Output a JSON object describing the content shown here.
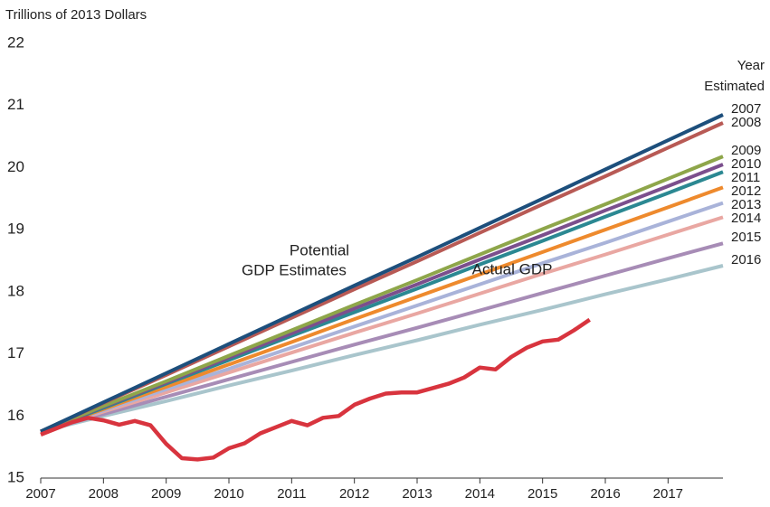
{
  "chart_data": {
    "type": "line",
    "y_axis_label": "Trillions of 2013 Dollars",
    "legend_title": [
      "Year",
      "Estimated"
    ],
    "annotations": [
      {
        "text": [
          "Potential",
          "GDP Estimates"
        ]
      }
    ],
    "xlim": [
      2007,
      2017.875
    ],
    "ylim": [
      15,
      22
    ],
    "xticks": [
      2007,
      2008,
      2009,
      2010,
      2011,
      2012,
      2013,
      2014,
      2015,
      2016,
      2017
    ],
    "yticks": [
      15,
      16,
      17,
      18,
      19,
      20,
      21,
      22
    ],
    "grid": false,
    "x": [
      2007,
      2008,
      2009,
      2010,
      2011,
      2012,
      2013,
      2014,
      2015,
      2016,
      2017,
      2017.875
    ],
    "series": [
      {
        "name": "2007",
        "color": "#1d4f7c",
        "values": [
          15.75,
          16.22,
          16.69,
          17.16,
          17.63,
          18.1,
          18.56,
          19.03,
          19.5,
          19.97,
          20.44,
          20.85
        ]
      },
      {
        "name": "2008",
        "color": "#b85a55",
        "values": [
          15.75,
          16.21,
          16.66,
          17.12,
          17.58,
          18.04,
          18.49,
          18.95,
          19.41,
          19.86,
          20.32,
          20.72
        ]
      },
      {
        "name": "2009",
        "color": "#8ea64a",
        "values": [
          15.75,
          16.16,
          16.56,
          16.97,
          17.38,
          17.79,
          18.19,
          18.6,
          19.01,
          19.41,
          19.82,
          20.18
        ]
      },
      {
        "name": "2010",
        "color": "#7b4f8d",
        "values": [
          15.75,
          16.15,
          16.54,
          16.94,
          17.33,
          17.73,
          18.12,
          18.52,
          18.91,
          19.31,
          19.7,
          20.05
        ]
      },
      {
        "name": "2011",
        "color": "#2b8892",
        "values": [
          15.75,
          16.13,
          16.52,
          16.9,
          17.29,
          17.67,
          18.05,
          18.44,
          18.82,
          19.21,
          19.59,
          19.93
        ]
      },
      {
        "name": "2012",
        "color": "#ee8a2d",
        "values": [
          15.75,
          16.11,
          16.47,
          16.83,
          17.19,
          17.56,
          17.92,
          18.28,
          18.64,
          19.0,
          19.36,
          19.68
        ]
      },
      {
        "name": "2013",
        "color": "#a9b3d9",
        "values": [
          15.75,
          16.09,
          16.43,
          16.76,
          17.1,
          17.44,
          17.78,
          18.12,
          18.46,
          18.79,
          19.13,
          19.43
        ]
      },
      {
        "name": "2014",
        "color": "#e9a7a2",
        "values": [
          15.75,
          16.07,
          16.38,
          16.7,
          17.02,
          17.34,
          17.65,
          17.97,
          18.29,
          18.6,
          18.92,
          19.2
        ]
      },
      {
        "name": "2015",
        "color": "#a78cb6",
        "values": [
          15.75,
          16.03,
          16.31,
          16.59,
          16.87,
          17.15,
          17.42,
          17.7,
          17.98,
          18.26,
          18.54,
          18.78
        ]
      },
      {
        "name": "2016",
        "color": "#a9c5cc",
        "values": [
          15.75,
          16.0,
          16.24,
          16.49,
          16.73,
          16.98,
          17.22,
          17.47,
          17.71,
          17.96,
          18.2,
          18.42
        ]
      },
      {
        "name": "Actual GDP",
        "color": "#d8343e",
        "x": [
          2007,
          2007.25,
          2007.5,
          2007.75,
          2008,
          2008.25,
          2008.5,
          2008.75,
          2009,
          2009.25,
          2009.5,
          2009.75,
          2010,
          2010.25,
          2010.5,
          2010.75,
          2011,
          2011.25,
          2011.5,
          2011.75,
          2012,
          2012.25,
          2012.5,
          2012.75,
          2013,
          2013.25,
          2013.5,
          2013.75,
          2014,
          2014.25,
          2014.5,
          2014.75,
          2015,
          2015.25,
          2015.5,
          2015.75
        ],
        "values": [
          15.7,
          15.8,
          15.9,
          15.97,
          15.93,
          15.86,
          15.92,
          15.85,
          15.55,
          15.32,
          15.3,
          15.33,
          15.48,
          15.56,
          15.72,
          15.82,
          15.92,
          15.85,
          15.97,
          16.0,
          16.18,
          16.28,
          16.36,
          16.38,
          16.38,
          16.45,
          16.52,
          16.62,
          16.78,
          16.75,
          16.95,
          17.1,
          17.2,
          17.23,
          17.38,
          17.55
        ]
      }
    ]
  }
}
